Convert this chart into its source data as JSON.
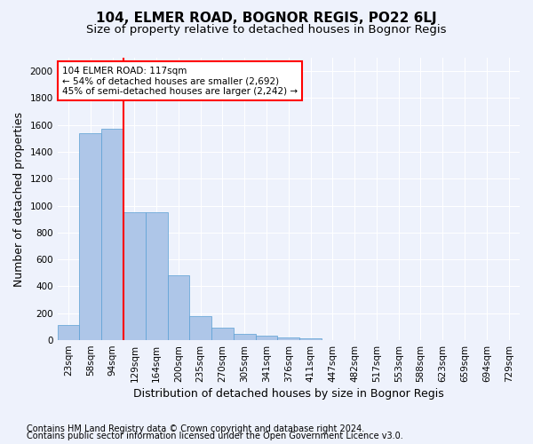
{
  "title": "104, ELMER ROAD, BOGNOR REGIS, PO22 6LJ",
  "subtitle": "Size of property relative to detached houses in Bognor Regis",
  "xlabel": "Distribution of detached houses by size in Bognor Regis",
  "ylabel": "Number of detached properties",
  "categories": [
    "23sqm",
    "58sqm",
    "94sqm",
    "129sqm",
    "164sqm",
    "200sqm",
    "235sqm",
    "270sqm",
    "305sqm",
    "341sqm",
    "376sqm",
    "411sqm",
    "447sqm",
    "482sqm",
    "517sqm",
    "553sqm",
    "588sqm",
    "623sqm",
    "659sqm",
    "694sqm",
    "729sqm"
  ],
  "values": [
    110,
    1540,
    1570,
    950,
    950,
    480,
    180,
    95,
    45,
    35,
    20,
    15,
    0,
    0,
    0,
    0,
    0,
    0,
    0,
    0,
    0
  ],
  "bar_color": "#aec6e8",
  "bar_edge_color": "#5a9fd4",
  "ylim": [
    0,
    2100
  ],
  "yticks": [
    0,
    200,
    400,
    600,
    800,
    1000,
    1200,
    1400,
    1600,
    1800,
    2000
  ],
  "marker_label": "104 ELMER ROAD: 117sqm",
  "annotation_line1": "← 54% of detached houses are smaller (2,692)",
  "annotation_line2": "45% of semi-detached houses are larger (2,242) →",
  "footer1": "Contains HM Land Registry data © Crown copyright and database right 2024.",
  "footer2": "Contains public sector information licensed under the Open Government Licence v3.0.",
  "bg_color": "#eef2fc",
  "plot_bg_color": "#eef2fc",
  "grid_color": "#ffffff",
  "title_fontsize": 11,
  "subtitle_fontsize": 9.5,
  "axis_label_fontsize": 9,
  "tick_fontsize": 7.5,
  "footer_fontsize": 7,
  "red_line_x": 2.5
}
